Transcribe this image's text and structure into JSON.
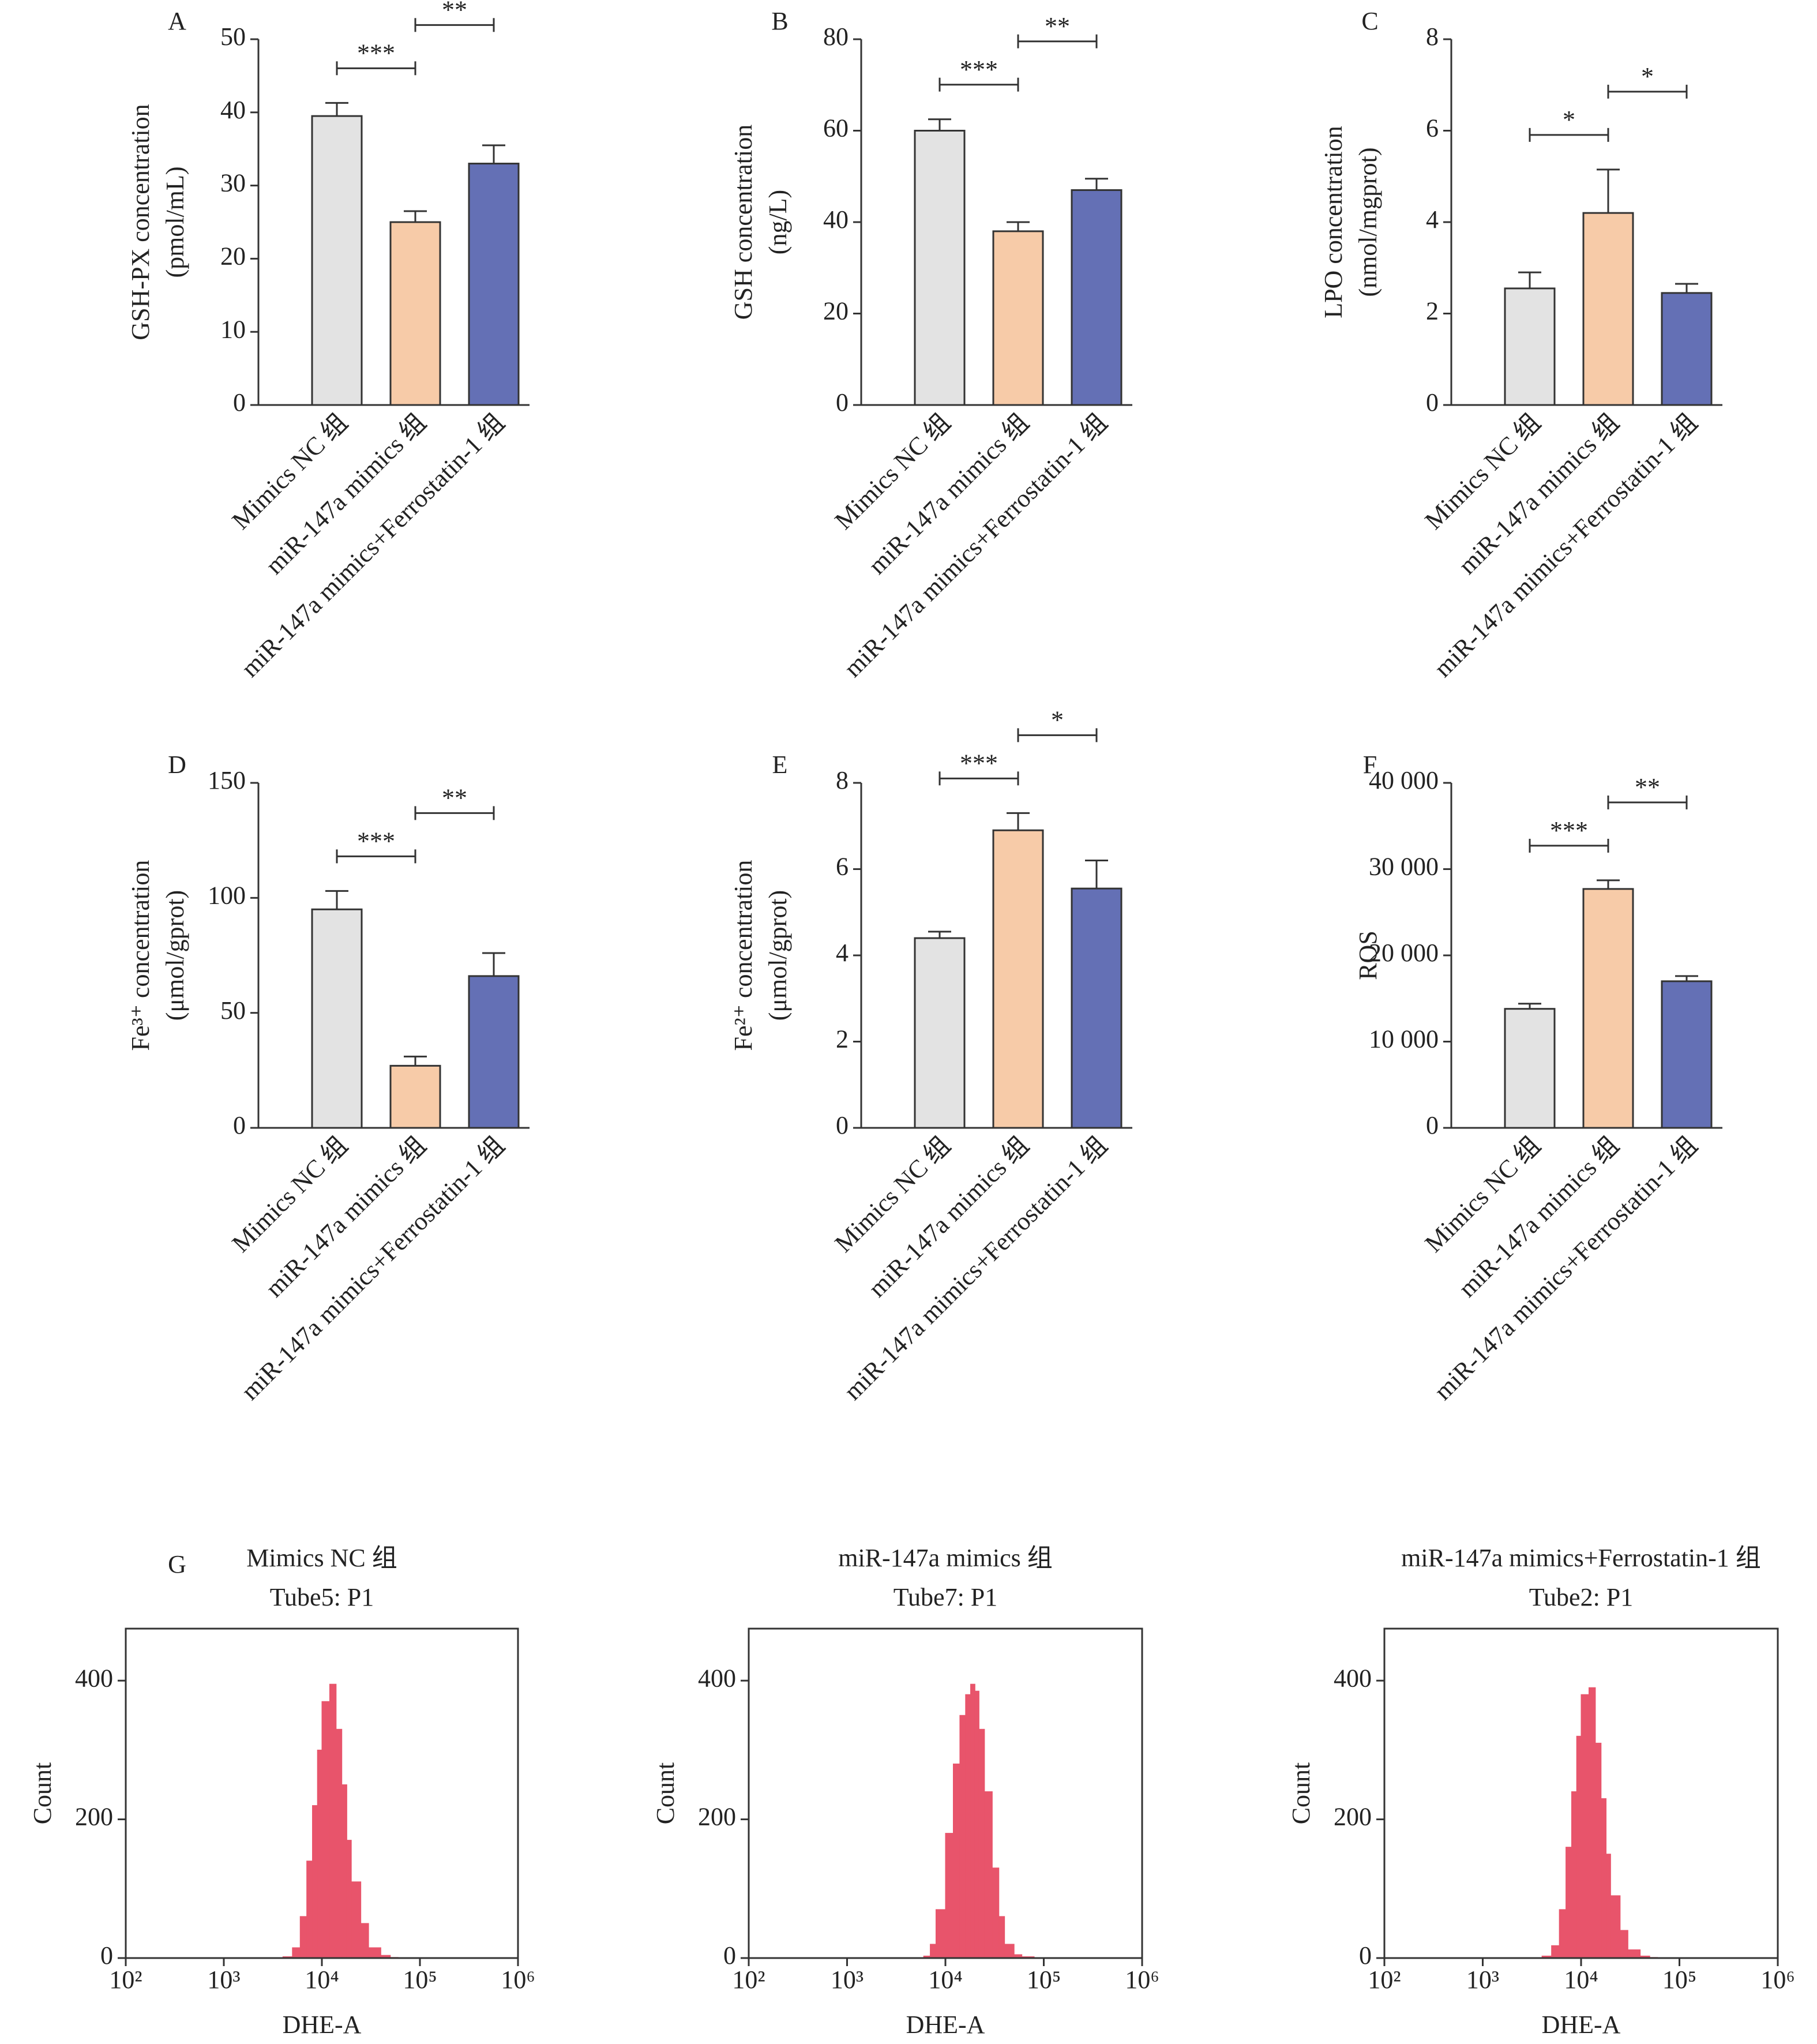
{
  "chart_data": [
    {
      "type": "bar",
      "panel": "A",
      "y_label": [
        "GSH-PX concentration",
        "(pmol/mL)"
      ],
      "categories": [
        "Mimics NC 组",
        "miR-147a mimics 组",
        "miR-147a mimics+Ferrostatin-1 组"
      ],
      "values": [
        39.5,
        25,
        33
      ],
      "errors": [
        1.8,
        1.5,
        2.5
      ],
      "colors": [
        "#e3e3e3",
        "#f7cba8",
        "#6470b5"
      ],
      "ylim": [
        0,
        50
      ],
      "yticks": [
        0,
        10,
        20,
        30,
        40,
        50
      ],
      "significance": [
        {
          "from": 0,
          "to": 1,
          "label": "***"
        },
        {
          "from": 1,
          "to": 2,
          "label": "**"
        }
      ]
    },
    {
      "type": "bar",
      "panel": "B",
      "y_label": [
        "GSH concentration",
        "(ng/L)"
      ],
      "categories": [
        "Mimics NC 组",
        "miR-147a mimics 组",
        "miR-147a mimics+Ferrostatin-1 组"
      ],
      "values": [
        60,
        38,
        47
      ],
      "errors": [
        2.5,
        2,
        2.5
      ],
      "colors": [
        "#e3e3e3",
        "#f7cba8",
        "#6470b5"
      ],
      "ylim": [
        0,
        80
      ],
      "yticks": [
        0,
        20,
        40,
        60,
        80
      ],
      "significance": [
        {
          "from": 0,
          "to": 1,
          "label": "***"
        },
        {
          "from": 1,
          "to": 2,
          "label": "**"
        }
      ]
    },
    {
      "type": "bar",
      "panel": "C",
      "y_label": [
        "LPO concentration",
        "(nmol/mgprot)"
      ],
      "categories": [
        "Mimics NC 组",
        "miR-147a mimics 组",
        "miR-147a mimics+Ferrostatin-1 组"
      ],
      "values": [
        2.55,
        4.2,
        2.45
      ],
      "errors": [
        0.35,
        0.95,
        0.2
      ],
      "colors": [
        "#e3e3e3",
        "#f7cba8",
        "#6470b5"
      ],
      "ylim": [
        0,
        8
      ],
      "yticks": [
        0,
        2,
        4,
        6,
        8
      ],
      "significance": [
        {
          "from": 0,
          "to": 1,
          "label": "*"
        },
        {
          "from": 1,
          "to": 2,
          "label": "*"
        }
      ]
    },
    {
      "type": "bar",
      "panel": "D",
      "y_label": [
        "Fe³⁺ concentration",
        "(μmol/gprot)"
      ],
      "categories": [
        "Mimics NC 组",
        "miR-147a mimics 组",
        "miR-147a mimics+Ferrostatin-1 组"
      ],
      "values": [
        95,
        27,
        66
      ],
      "errors": [
        8,
        4,
        10
      ],
      "colors": [
        "#e3e3e3",
        "#f7cba8",
        "#6470b5"
      ],
      "ylim": [
        0,
        150
      ],
      "yticks": [
        0,
        50,
        100,
        150
      ],
      "significance": [
        {
          "from": 0,
          "to": 1,
          "label": "***"
        },
        {
          "from": 1,
          "to": 2,
          "label": "**"
        }
      ]
    },
    {
      "type": "bar",
      "panel": "E",
      "y_label": [
        "Fe²⁺ concentration",
        "(μmol/gprot)"
      ],
      "categories": [
        "Mimics NC 组",
        "miR-147a mimics 组",
        "miR-147a mimics+Ferrostatin-1 组"
      ],
      "values": [
        4.4,
        6.9,
        5.55
      ],
      "errors": [
        0.15,
        0.4,
        0.65
      ],
      "colors": [
        "#e3e3e3",
        "#f7cba8",
        "#6470b5"
      ],
      "ylim": [
        0,
        8
      ],
      "yticks": [
        0,
        2,
        4,
        6,
        8
      ],
      "significance": [
        {
          "from": 0,
          "to": 1,
          "label": "***"
        },
        {
          "from": 1,
          "to": 2,
          "label": "*"
        }
      ]
    },
    {
      "type": "bar",
      "panel": "F",
      "y_label": [
        "ROS"
      ],
      "categories": [
        "Mimics NC 组",
        "miR-147a mimics 组",
        "miR-147a mimics+Ferrostatin-1 组"
      ],
      "values": [
        13800,
        27700,
        17000
      ],
      "errors": [
        600,
        1000,
        600
      ],
      "colors": [
        "#e3e3e3",
        "#f7cba8",
        "#6470b5"
      ],
      "ylim": [
        0,
        40000
      ],
      "yticks": [
        0,
        {
          "value": 10000,
          "label": "10 000"
        },
        {
          "value": 20000,
          "label": "20 000"
        },
        {
          "value": 30000,
          "label": "30 000"
        },
        {
          "value": 40000,
          "label": "40 000"
        }
      ],
      "significance": [
        {
          "from": 0,
          "to": 1,
          "label": "***"
        },
        {
          "from": 1,
          "to": 2,
          "label": "**"
        }
      ]
    },
    {
      "type": "histogram",
      "panel": "G",
      "title": [
        "Mimics NC 组",
        "Tube5: P1"
      ],
      "x_label": "DHE-A",
      "y_label": "Count",
      "bins": [
        4000,
        5000,
        6000,
        7000,
        8000,
        9000,
        10000,
        12000,
        14000,
        16000,
        18000,
        20000,
        25000,
        30000,
        40000,
        50000,
        60000
      ],
      "values": [
        2,
        15,
        60,
        140,
        220,
        300,
        370,
        395,
        330,
        250,
        170,
        110,
        50,
        15,
        4,
        1
      ],
      "color": "#e8546b",
      "log_x": true,
      "xlim": [
        100,
        1000000
      ],
      "xticks": [
        {
          "value": 100,
          "label": "10²"
        },
        {
          "value": 1000,
          "label": "10³"
        },
        {
          "value": 10000,
          "label": "10⁴"
        },
        {
          "value": 100000,
          "label": "10⁵"
        },
        {
          "value": 1000000,
          "label": "10⁶"
        }
      ],
      "ylim": [
        0,
        475
      ],
      "yticks": [
        0,
        200,
        400
      ]
    },
    {
      "type": "histogram",
      "title": [
        "miR-147a mimics 组",
        "Tube7: P1"
      ],
      "x_label": "DHE-A",
      "y_label": "Count",
      "bins": [
        6000,
        7000,
        8000,
        10000,
        12000,
        14000,
        16000,
        18000,
        20000,
        22000,
        25000,
        30000,
        35000,
        40000,
        50000,
        60000,
        80000
      ],
      "values": [
        3,
        20,
        70,
        180,
        280,
        350,
        380,
        395,
        385,
        330,
        240,
        130,
        60,
        20,
        5,
        2
      ],
      "color": "#e8546b",
      "log_x": true,
      "xlim": [
        100,
        1000000
      ],
      "xticks": [
        {
          "value": 100,
          "label": "10²"
        },
        {
          "value": 1000,
          "label": "10³"
        },
        {
          "value": 10000,
          "label": "10⁴"
        },
        {
          "value": 100000,
          "label": "10⁵"
        },
        {
          "value": 1000000,
          "label": "10⁶"
        }
      ],
      "ylim": [
        0,
        475
      ],
      "yticks": [
        0,
        200,
        400
      ]
    },
    {
      "type": "histogram",
      "title": [
        "miR-147a mimics+Ferrostatin-1 组",
        "Tube2: P1"
      ],
      "x_label": "DHE-A",
      "y_label": "Count",
      "bins": [
        4000,
        5000,
        6000,
        7000,
        8000,
        9000,
        10000,
        12000,
        14000,
        16000,
        18000,
        20000,
        25000,
        30000,
        40000,
        50000,
        60000
      ],
      "values": [
        3,
        18,
        70,
        160,
        240,
        320,
        380,
        390,
        310,
        230,
        150,
        90,
        40,
        12,
        3,
        1
      ],
      "color": "#e8546b",
      "log_x": true,
      "xlim": [
        100,
        1000000
      ],
      "xticks": [
        {
          "value": 100,
          "label": "10²"
        },
        {
          "value": 1000,
          "label": "10³"
        },
        {
          "value": 10000,
          "label": "10⁴"
        },
        {
          "value": 100000,
          "label": "10⁵"
        },
        {
          "value": 1000000,
          "label": "10⁶"
        }
      ],
      "ylim": [
        0,
        475
      ],
      "yticks": [
        0,
        200,
        400
      ]
    }
  ]
}
